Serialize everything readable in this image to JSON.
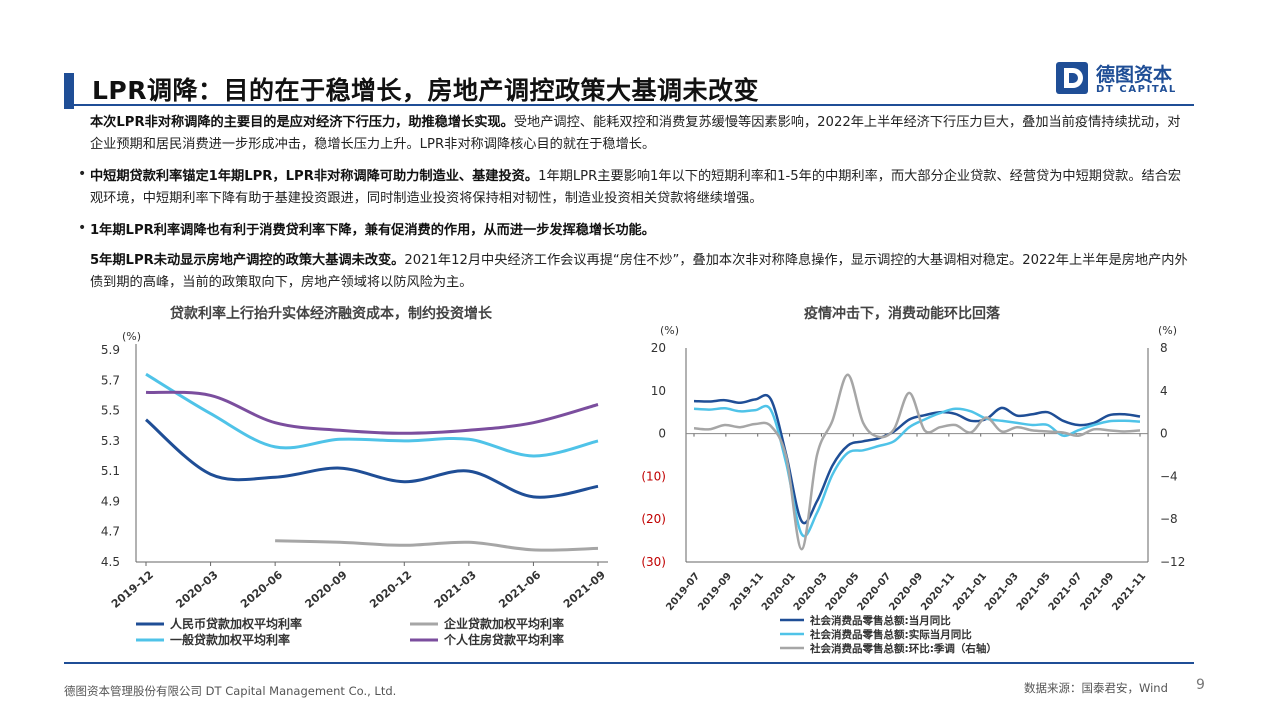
{
  "title": "LPR调降：目的在于稳增长，房地产调控政策大基调未改变",
  "logo": {
    "cn": "德图资本",
    "en": "DT CAPITAL",
    "color": "#1f4e96"
  },
  "paragraphs": {
    "p1_bold": "本次LPR非对称调降的主要目的是应对经济下行压力，助推稳增长实现。",
    "p1_rest": "受地产调控、能耗双控和消费复苏缓慢等因素影响，2022年上半年经济下行压力巨大，叠加当前疫情持续扰动，对企业预期和居民消费进一步形成冲击，稳增长压力上升。LPR非对称调降核心目的就在于稳增长。",
    "bullet": "•",
    "b1_bold": "中短期贷款利率锚定1年期LPR，LPR非对称调降可助力制造业、基建投资。",
    "b1_rest": "1年期LPR主要影响1年以下的短期利率和1-5年的中期利率，而大部分企业贷款、经营贷为中短期贷款。结合宏观环境，中短期利率下降有助于基建投资跟进，同时制造业投资将保持相对韧性，制造业投资相关贷款将继续增强。",
    "b2_bold": "1年期LPR利率调降也有利于消费贷利率下降，兼有促消费的作用，从而进一步发挥稳增长功能。",
    "p2_bold": "5年期LPR未动显示房地产调控的政策大基调未改变。",
    "p2_rest": "2021年12月中央经济工作会议再提“房住不炒”，叠加本次非对称降息操作，显示调控的大基调相对稳定。2022年上半年是房地产内外债到期的高峰，当前的政策取向下，房地产领域将以防风险为主。"
  },
  "chart_data": [
    {
      "type": "line",
      "title": "贷款利率上行抬升实体经济融资成本，制约投资增长",
      "ylabel": "(%)",
      "ylim": [
        4.5,
        5.9
      ],
      "yticks": [
        "5.9",
        "5.7",
        "5.5",
        "5.3",
        "5.1",
        "4.9",
        "4.7",
        "4.5"
      ],
      "xticks": [
        "2019-12",
        "2020-03",
        "2020-06",
        "2020-09",
        "2020-12",
        "2021-03",
        "2021-06",
        "2021-09"
      ],
      "series": [
        {
          "name": "人民币贷款加权平均利率",
          "color": "#1f4e96",
          "x": [
            0,
            1,
            2,
            3,
            4,
            5,
            6,
            7
          ],
          "values": [
            5.44,
            5.08,
            5.06,
            5.12,
            5.03,
            5.1,
            4.93,
            5.0
          ]
        },
        {
          "name": "一般贷款加权平均利率",
          "color": "#4fc3e8",
          "x": [
            0,
            1,
            2,
            3,
            4,
            5,
            6,
            7
          ],
          "values": [
            5.74,
            5.48,
            5.26,
            5.31,
            5.3,
            5.31,
            5.2,
            5.3
          ]
        },
        {
          "name": "企业贷款加权平均利率",
          "color": "#a6a6a6",
          "x": [
            2,
            3,
            4,
            5,
            6,
            7
          ],
          "values": [
            4.64,
            4.63,
            4.61,
            4.63,
            4.58,
            4.59
          ]
        },
        {
          "name": "个人住房贷款平均利率",
          "color": "#7b4e9e",
          "x": [
            0,
            1,
            2,
            3,
            4,
            5,
            6,
            7
          ],
          "values": [
            5.62,
            5.6,
            5.42,
            5.37,
            5.35,
            5.37,
            5.42,
            5.54
          ]
        }
      ]
    },
    {
      "type": "line",
      "title": "疫情冲击下，消费动能环比回落",
      "ylabel_left": "(%)",
      "ylabel_right": "(%)",
      "ylim_left": [
        -30,
        20
      ],
      "ylim_right": [
        -12,
        8
      ],
      "yticks_left": [
        "20",
        "10",
        "0",
        "(10)",
        "(20)",
        "(30)"
      ],
      "yticks_right": [
        "8",
        "4",
        "0",
        "−4",
        "−8",
        "−12"
      ],
      "xticks": [
        "2019-07",
        "2019-09",
        "2019-11",
        "2020-01",
        "2020-03",
        "2020-05",
        "2020-07",
        "2020-09",
        "2020-11",
        "2021-01",
        "2021-03",
        "2021-05",
        "2021-07",
        "2021-09",
        "2021-11"
      ],
      "series": [
        {
          "name": "社会消费品零售总额:当月同比",
          "color": "#1f4e96",
          "axis": "left",
          "values": [
            7.6,
            7.5,
            7.8,
            7.2,
            8.0,
            8.0,
            -5.0,
            -20.5,
            -15.8,
            -7.5,
            -2.8,
            -1.8,
            -1.1,
            0.5,
            3.3,
            4.3,
            5.0,
            4.6,
            3.0,
            3.4,
            6.0,
            4.2,
            4.5,
            5.0,
            3.0,
            2.0,
            2.5,
            4.3,
            4.5,
            4.0
          ]
        },
        {
          "name": "社会消费品零售总额:实际当月同比",
          "color": "#4fc3e8",
          "axis": "left",
          "values": [
            5.8,
            5.6,
            5.9,
            5.2,
            5.5,
            5.5,
            -7.0,
            -23.5,
            -18.5,
            -9.6,
            -4.5,
            -3.9,
            -2.9,
            -1.8,
            1.5,
            3.3,
            4.8,
            5.8,
            5.2,
            3.5,
            3.0,
            2.5,
            2.0,
            2.0,
            -0.5,
            0.8,
            2.0,
            2.9,
            3.0,
            2.8
          ]
        },
        {
          "name": "社会消费品零售总额:环比:季调（右轴）",
          "color": "#a6a6a6",
          "axis": "right",
          "values": [
            0.5,
            0.4,
            0.8,
            0.6,
            0.9,
            0.7,
            -2.2,
            -10.8,
            -2.0,
            1.2,
            5.5,
            1.0,
            -0.3,
            0.4,
            3.8,
            0.3,
            0.6,
            0.8,
            0.1,
            1.5,
            0.2,
            0.6,
            0.3,
            0.2,
            0.1,
            -0.2,
            0.4,
            0.3,
            0.2,
            0.3
          ]
        }
      ]
    }
  ],
  "footer": {
    "company": "德图资本管理股份有限公司  DT Capital Management Co., Ltd.",
    "source": "数据来源：国泰君安，Wind",
    "page": "9"
  }
}
